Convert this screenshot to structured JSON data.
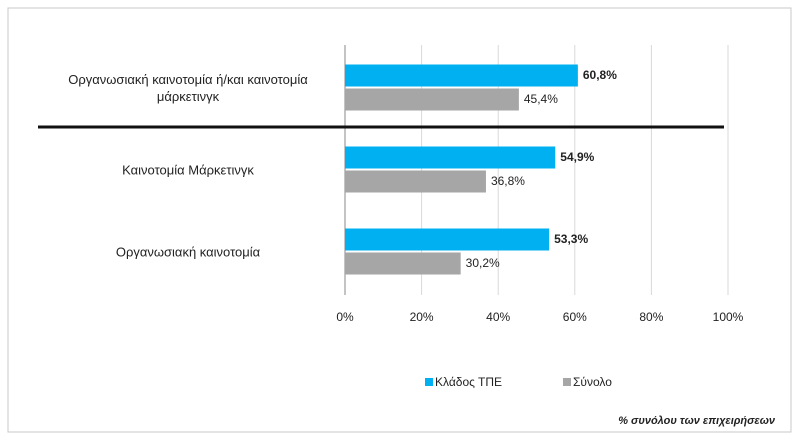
{
  "chart_data": {
    "type": "bar",
    "orientation": "horizontal",
    "categories": [
      "Οργανωσιακή καινοτομία ή/και καινοτομία μάρκετινγκ",
      "Καινοτομία Μάρκετινγκ",
      "Οργανωσιακή καινοτομία"
    ],
    "series": [
      {
        "name": "Κλάδος ΤΠΕ",
        "color": "#00b0f0",
        "values": [
          60.8,
          54.9,
          53.3
        ],
        "value_labels": [
          "60,8%",
          "54,9%",
          "53,3%"
        ]
      },
      {
        "name": "Σύνολο",
        "color": "#a6a6a6",
        "values": [
          45.4,
          36.8,
          30.2
        ],
        "value_labels": [
          "45,4%",
          "36,8%",
          "30,2%"
        ]
      }
    ],
    "xlim": [
      0,
      100
    ],
    "xticks": [
      {
        "value": 0,
        "label": "0%"
      },
      {
        "value": 20,
        "label": "20%"
      },
      {
        "value": 40,
        "label": "40%"
      },
      {
        "value": 60,
        "label": "60%"
      },
      {
        "value": 80,
        "label": "80%"
      },
      {
        "value": 100,
        "label": "100%"
      }
    ],
    "grid": true,
    "legend": "bottom",
    "footnote": "% συνόλου των επιχειρήσεων"
  }
}
